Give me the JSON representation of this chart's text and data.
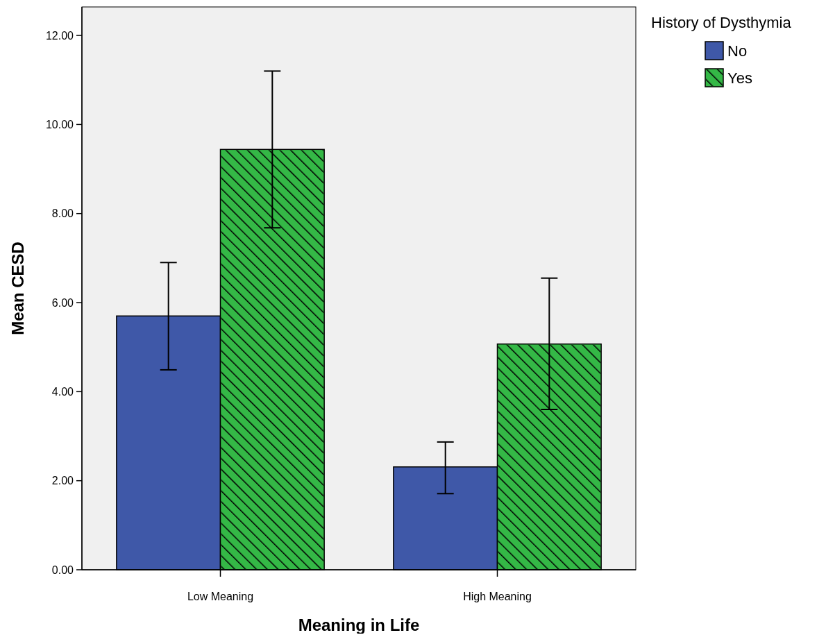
{
  "chart_data": {
    "type": "bar",
    "xlabel": "Meaning in Life",
    "ylabel": "Mean CESD",
    "legend_title": "History of Dysthymia",
    "legend": "top right",
    "categories": [
      "Low Meaning",
      "High Meaning"
    ],
    "series": [
      {
        "name": "No",
        "color": "#3f58a8",
        "values": [
          5.7,
          2.31
        ],
        "errors": [
          [
            4.49,
            6.9
          ],
          [
            1.71,
            2.87
          ]
        ]
      },
      {
        "name": "Yes",
        "color": "#34b846",
        "values": [
          9.44,
          5.07
        ],
        "errors": [
          [
            7.68,
            11.2
          ],
          [
            3.6,
            6.55
          ]
        ]
      }
    ],
    "ylim": [
      0,
      12.64
    ],
    "yticks": [
      {
        "value": 0,
        "label": "0.00"
      },
      {
        "value": 2,
        "label": "2.00"
      },
      {
        "value": 4,
        "label": "4.00"
      },
      {
        "value": 6,
        "label": "6.00"
      },
      {
        "value": 8,
        "label": "8.00"
      },
      {
        "value": 10,
        "label": "10.00"
      },
      {
        "value": 12,
        "label": "12.00"
      }
    ],
    "grid": false
  }
}
